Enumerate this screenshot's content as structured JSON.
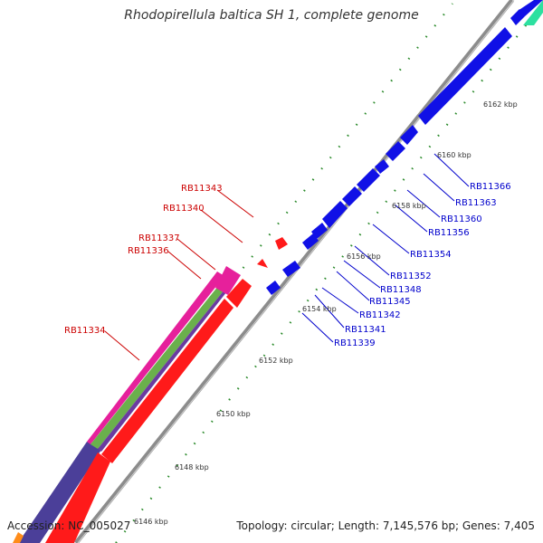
{
  "title": "Rhodopirellula baltica SH 1, complete genome",
  "footer": {
    "accession": "Accession: NC_005027",
    "summary": "Topology: circular; Length: 7,145,576 bp; Genes: 7,405"
  },
  "colors": {
    "forward_gene": "#1010e6",
    "reverse_gene": "#ff1a1a",
    "reverse_label": "#cc0000",
    "forward_label": "#0000cc",
    "backbone": "#8c8c8c",
    "tick_dots": "#2a8a2a",
    "cog_magenta": "#e6209b",
    "cog_green": "#6ab04c",
    "cog_purple": "#4b3f99",
    "cog_teal": "#2de0a0",
    "cog_orange": "#ff8c1a"
  },
  "scale_labels": [
    "6146 kbp",
    "6148 kbp",
    "6150 kbp",
    "6152 kbp",
    "6154 kbp",
    "6156 kbp",
    "6158 kbp",
    "6160 kbp",
    "6162 kbp"
  ],
  "forward_genes": [
    "RB11339",
    "RB11341",
    "RB11342",
    "RB11345",
    "RB11348",
    "RB11352",
    "RB11354",
    "RB11356",
    "RB11360",
    "RB11363",
    "RB11366"
  ],
  "reverse_genes": [
    "RB11334",
    "RB11336",
    "RB11337",
    "RB11340",
    "RB11343"
  ]
}
